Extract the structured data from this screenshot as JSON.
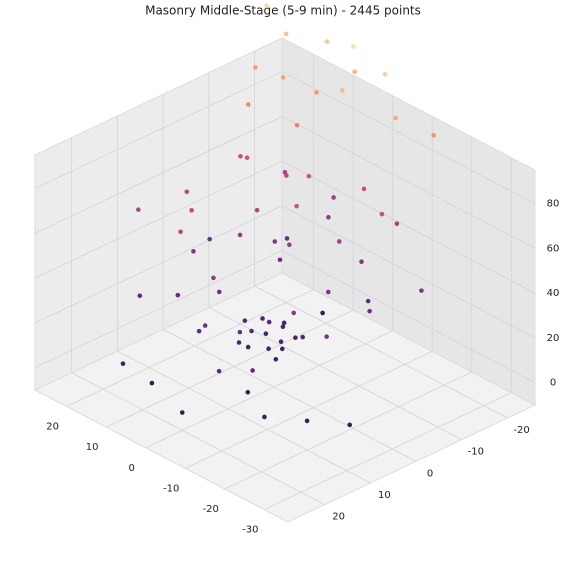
{
  "chart_data": {
    "type": "scatter3d",
    "title": "Masonry Middle-Stage (5-9 min) - 2445 points",
    "colormap": "magma",
    "x": [
      2,
      -1,
      0,
      3,
      -3,
      1,
      -2,
      4,
      0,
      -4,
      2,
      5,
      -1,
      3,
      -5,
      8,
      -8,
      10,
      -12,
      15,
      -6,
      5,
      12,
      -10,
      0,
      18,
      -15,
      7,
      -3,
      20,
      -18,
      9,
      -7,
      14,
      -20,
      3,
      22,
      -12,
      6,
      10,
      15,
      -5,
      20,
      12,
      -10,
      18,
      5,
      22,
      8,
      -2,
      16,
      25,
      0,
      13,
      -8,
      -5,
      -15,
      10,
      -20,
      0,
      5,
      -25,
      15,
      15,
      20,
      5,
      10,
      -5,
      0,
      18,
      12,
      22,
      -10,
      25,
      8,
      -15,
      3
    ],
    "y": [
      0,
      2,
      -2,
      3,
      1,
      4,
      -3,
      -1,
      1,
      3,
      -4,
      2,
      -1,
      5,
      -2,
      5,
      -5,
      -10,
      6,
      8,
      -14,
      12,
      -3,
      -12,
      15,
      2,
      -8,
      -18,
      10,
      12,
      4,
      -8,
      18,
      -15,
      -15,
      -6,
      -5,
      15,
      8,
      -5,
      5,
      -10,
      -10,
      10,
      -15,
      -18,
      -12,
      0,
      -20,
      -18,
      -8,
      8,
      -5,
      -14,
      -20,
      10,
      15,
      18,
      10,
      20,
      -15,
      5,
      20,
      -15,
      -20,
      -22,
      -18,
      -20,
      -15,
      -10,
      -22,
      -15,
      -18,
      -20,
      -12,
      -22,
      -20
    ],
    "z": [
      12,
      10,
      15,
      8,
      14,
      18,
      11,
      16,
      20,
      9,
      13,
      17,
      7,
      12,
      15,
      30,
      35,
      28,
      40,
      25,
      38,
      22,
      44,
      26,
      32,
      36,
      30,
      42,
      27,
      24,
      33,
      39,
      21,
      29,
      37,
      45,
      31,
      23,
      41,
      55,
      60,
      50,
      65,
      58,
      62,
      52,
      68,
      57,
      48,
      63,
      70,
      54,
      66,
      59,
      51,
      2,
      5,
      0,
      3,
      -2,
      4,
      1,
      6,
      100,
      110,
      105,
      95,
      115,
      108,
      90,
      112,
      98,
      102,
      118,
      88,
      95,
      120
    ],
    "xlim": [
      -36,
      28
    ],
    "ylim": [
      -26,
      28
    ],
    "zlim": [
      -10,
      95
    ],
    "xticks": [
      -30,
      -20,
      -10,
      0,
      10,
      20
    ],
    "yticks": [
      -20,
      -10,
      0,
      10,
      20
    ],
    "zticks": [
      0,
      20,
      40,
      60,
      80
    ],
    "grid": true
  }
}
